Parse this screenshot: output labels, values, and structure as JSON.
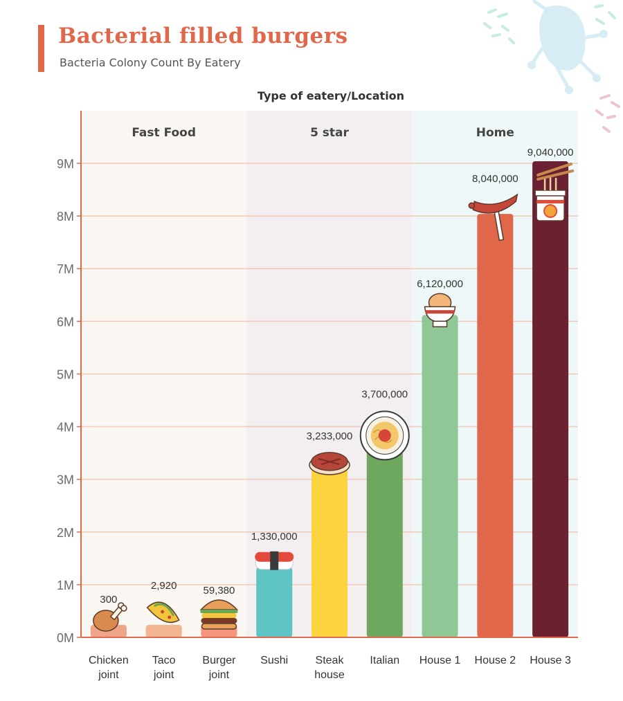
{
  "header": {
    "title": "Bacterial filled burgers",
    "subtitle": "Bacteria Colony Count By Eatery"
  },
  "chart_data": {
    "type": "bar",
    "title": "Bacterial filled burgers",
    "subtitle": "Bacteria Colony Count By Eatery",
    "top_label": "Type of eatery/Location",
    "categories": [
      {
        "line1": "Chicken",
        "line2": "joint"
      },
      {
        "line1": "Taco",
        "line2": "joint"
      },
      {
        "line1": "Burger",
        "line2": "joint"
      },
      {
        "line1": "Sushi",
        "line2": ""
      },
      {
        "line1": "Steak",
        "line2": "house"
      },
      {
        "line1": "Italian",
        "line2": ""
      },
      {
        "line1": "House 1",
        "line2": ""
      },
      {
        "line1": "House 2",
        "line2": ""
      },
      {
        "line1": "House 3",
        "line2": ""
      }
    ],
    "values": [
      300,
      2920,
      59380,
      1330000,
      3233000,
      3700000,
      6120000,
      8040000,
      9040000
    ],
    "value_labels": [
      "300",
      "2,920",
      "59,380",
      "1,330,000",
      "3,233,000",
      "3,700,000",
      "6,120,000",
      "8,040,000",
      "9,040,000"
    ],
    "bar_colors": [
      "#f0a488",
      "#f2b590",
      "#f5967d",
      "#5ec4c4",
      "#fcd23e",
      "#6ea85e",
      "#8fc896",
      "#e0674a",
      "#6b2132"
    ],
    "groups": [
      {
        "name": "Fast Food",
        "start": 0,
        "end": 2,
        "color": "#faf7f3"
      },
      {
        "name": "5 star",
        "start": 3,
        "end": 5,
        "color": "#f3eff1"
      },
      {
        "name": "Home",
        "start": 6,
        "end": 8,
        "color": "#eef8f8"
      }
    ],
    "y_ticks": [
      0,
      1000000,
      2000000,
      3000000,
      4000000,
      5000000,
      6000000,
      7000000,
      8000000,
      9000000
    ],
    "y_tick_labels": [
      "0M",
      "1M",
      "2M",
      "3M",
      "4M",
      "5M",
      "6M",
      "7M",
      "8M",
      "9M"
    ],
    "ylim": [
      0,
      9000000
    ],
    "grid": true,
    "icons": [
      "chicken-leg-icon",
      "taco-icon",
      "burger-icon",
      "sushi-icon",
      "steak-icon",
      "spaghetti-plate-icon",
      "boiled-egg-icon",
      "sausage-fork-icon",
      "noodle-cup-icon"
    ],
    "colors": {
      "accent": "#e0674a",
      "grid": "#f2c9b8",
      "axis": "#e0674a"
    }
  }
}
